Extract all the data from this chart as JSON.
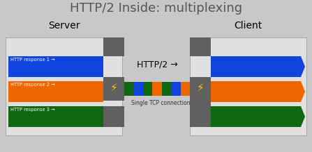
{
  "title": "HTTP/2 Inside: multiplexing",
  "title_fontsize": 13,
  "server_label": "Server",
  "client_label": "Client",
  "http2_label": "HTTP/2 →",
  "tcp_label": "Single TCP connection",
  "bg_color": "#c8c8c8",
  "box_bg": "#e0e0e0",
  "box_edge": "#aaaaaa",
  "colors": {
    "blue": "#1144dd",
    "orange": "#ee6600",
    "green": "#116611",
    "gray": "#606060",
    "light_gray": "#e0e0e0",
    "yellow": "#ffcc00",
    "white": "#ffffff"
  },
  "stream_labels": [
    "HTTP response 1 →",
    "HTTP response 2 →",
    "HTTP response 3 →"
  ],
  "stream_colors": [
    "blue",
    "orange",
    "green"
  ],
  "pipe_colors": [
    "green",
    "blue",
    "green",
    "orange",
    "green",
    "blue",
    "orange"
  ],
  "fig_w": 4.47,
  "fig_h": 2.19,
  "dpi": 100
}
